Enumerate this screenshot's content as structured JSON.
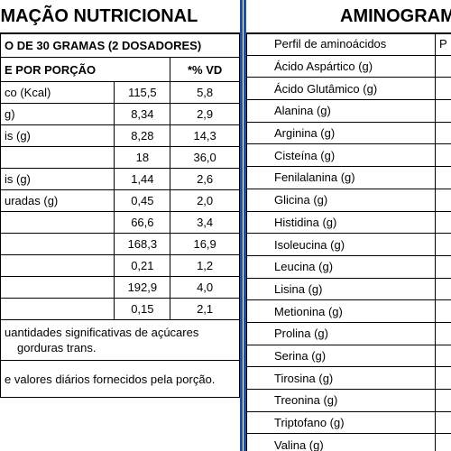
{
  "left": {
    "title": "RMAÇÃO NUTRICIONAL",
    "serving": "O DE 30 GRAMAS (2 DOSADORES)",
    "header": {
      "label": "E POR PORÇÃO",
      "vd": "*% VD"
    },
    "rows": [
      {
        "label": "co (Kcal)",
        "value": "115,5",
        "vd": "5,8"
      },
      {
        "label": "g)",
        "value": "8,34",
        "vd": "2,9"
      },
      {
        "label": "is (g)",
        "value": "8,28",
        "vd": "14,3"
      },
      {
        "label": "",
        "value": "18",
        "vd": "36,0"
      },
      {
        "label": "is (g)",
        "value": "1,44",
        "vd": "2,6"
      },
      {
        "label": "uradas (g)",
        "value": "0,45",
        "vd": "2,0"
      },
      {
        "label": "",
        "value": "66,6",
        "vd": "3,4"
      },
      {
        "label": "",
        "value": "168,3",
        "vd": "16,9"
      },
      {
        "label": "",
        "value": "0,21",
        "vd": "1,2"
      },
      {
        "label": "",
        "value": "192,9",
        "vd": "4,0"
      },
      {
        "label": "",
        "value": "0,15",
        "vd": "2,1"
      }
    ],
    "note1_line1": "uantidades significativas de açúcares",
    "note1_line2": "gorduras trans.",
    "note2": "e valores diários fornecidos pela porção."
  },
  "right": {
    "title": "AMINOGRAMA",
    "header": {
      "label": "Perfil de aminoácidos",
      "col": "P"
    },
    "rows": [
      "Ácido Aspártico (g)",
      "Ácido Glutâmico (g)",
      "Alanina (g)",
      "Arginina (g)",
      "Cisteína (g)",
      "Fenilalanina (g)",
      "Glicina (g)",
      "Histidina (g)",
      "Isoleucina (g)",
      "Leucina (g)",
      "Lisina (g)",
      "Metionina (g)",
      "Prolina (g)",
      "Serina (g)",
      "Tirosina (g)",
      "Treonina (g)",
      "Triptofano (g)",
      "Valina (g)"
    ]
  },
  "colors": {
    "divider": "#1f4ea8"
  }
}
